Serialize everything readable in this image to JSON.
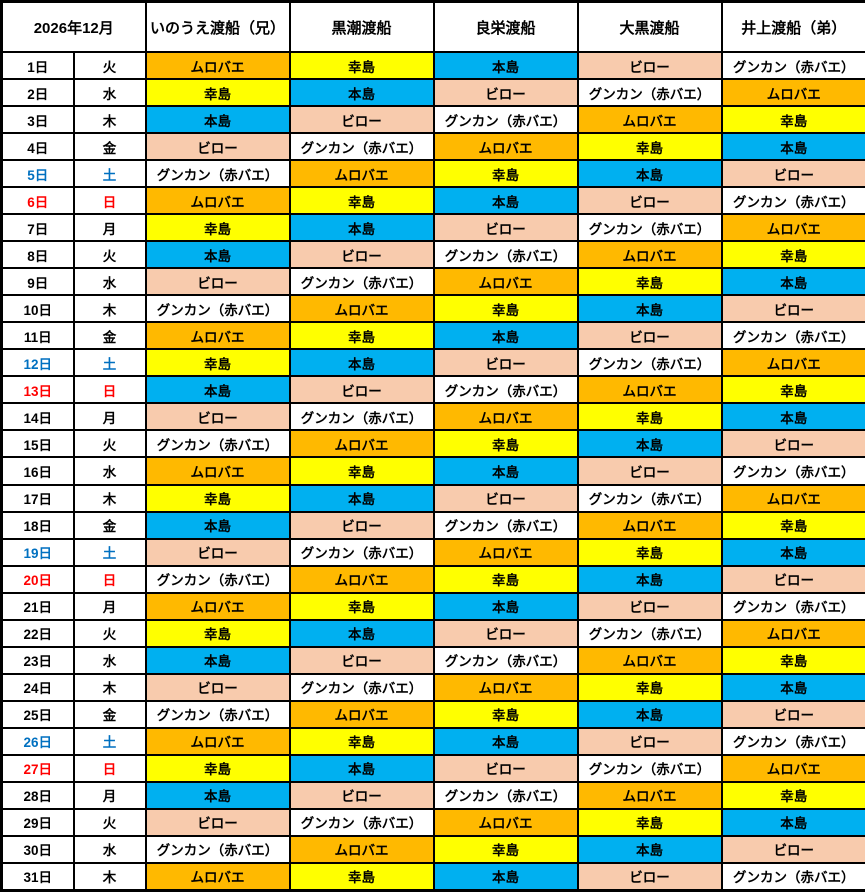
{
  "header": {
    "month_title": "2026年12月",
    "companies": [
      "いのうえ渡船（兄）",
      "黒潮渡船",
      "良栄渡船",
      "大黒渡船",
      "井上渡船（弟）"
    ]
  },
  "palette": {
    "ムロバエ": "#FFB900",
    "幸島": "#FFFF00",
    "本島": "#00B0F0",
    "ビロー": "#F8CBAD",
    "グンカン（赤バエ）": "#FFFFFF"
  },
  "weekday_colors": {
    "weekday": "#000000",
    "saturday": "#0070C0",
    "sunday": "#FF0000"
  },
  "border_color": "#000000",
  "rows": [
    {
      "day": "1日",
      "weekday": "火",
      "type": "weekday",
      "cells": [
        "ムロバエ",
        "幸島",
        "本島",
        "ビロー",
        "グンカン（赤バエ）"
      ]
    },
    {
      "day": "2日",
      "weekday": "水",
      "type": "weekday",
      "cells": [
        "幸島",
        "本島",
        "ビロー",
        "グンカン（赤バエ）",
        "ムロバエ"
      ]
    },
    {
      "day": "3日",
      "weekday": "木",
      "type": "weekday",
      "cells": [
        "本島",
        "ビロー",
        "グンカン（赤バエ）",
        "ムロバエ",
        "幸島"
      ]
    },
    {
      "day": "4日",
      "weekday": "金",
      "type": "weekday",
      "cells": [
        "ビロー",
        "グンカン（赤バエ）",
        "ムロバエ",
        "幸島",
        "本島"
      ]
    },
    {
      "day": "5日",
      "weekday": "土",
      "type": "saturday",
      "cells": [
        "グンカン（赤バエ）",
        "ムロバエ",
        "幸島",
        "本島",
        "ビロー"
      ]
    },
    {
      "day": "6日",
      "weekday": "日",
      "type": "sunday",
      "cells": [
        "ムロバエ",
        "幸島",
        "本島",
        "ビロー",
        "グンカン（赤バエ）"
      ]
    },
    {
      "day": "7日",
      "weekday": "月",
      "type": "weekday",
      "cells": [
        "幸島",
        "本島",
        "ビロー",
        "グンカン（赤バエ）",
        "ムロバエ"
      ]
    },
    {
      "day": "8日",
      "weekday": "火",
      "type": "weekday",
      "cells": [
        "本島",
        "ビロー",
        "グンカン（赤バエ）",
        "ムロバエ",
        "幸島"
      ]
    },
    {
      "day": "9日",
      "weekday": "水",
      "type": "weekday",
      "cells": [
        "ビロー",
        "グンカン（赤バエ）",
        "ムロバエ",
        "幸島",
        "本島"
      ]
    },
    {
      "day": "10日",
      "weekday": "木",
      "type": "weekday",
      "cells": [
        "グンカン（赤バエ）",
        "ムロバエ",
        "幸島",
        "本島",
        "ビロー"
      ]
    },
    {
      "day": "11日",
      "weekday": "金",
      "type": "weekday",
      "cells": [
        "ムロバエ",
        "幸島",
        "本島",
        "ビロー",
        "グンカン（赤バエ）"
      ]
    },
    {
      "day": "12日",
      "weekday": "土",
      "type": "saturday",
      "cells": [
        "幸島",
        "本島",
        "ビロー",
        "グンカン（赤バエ）",
        "ムロバエ"
      ]
    },
    {
      "day": "13日",
      "weekday": "日",
      "type": "sunday",
      "cells": [
        "本島",
        "ビロー",
        "グンカン（赤バエ）",
        "ムロバエ",
        "幸島"
      ]
    },
    {
      "day": "14日",
      "weekday": "月",
      "type": "weekday",
      "cells": [
        "ビロー",
        "グンカン（赤バエ）",
        "ムロバエ",
        "幸島",
        "本島"
      ]
    },
    {
      "day": "15日",
      "weekday": "火",
      "type": "weekday",
      "cells": [
        "グンカン（赤バエ）",
        "ムロバエ",
        "幸島",
        "本島",
        "ビロー"
      ]
    },
    {
      "day": "16日",
      "weekday": "水",
      "type": "weekday",
      "cells": [
        "ムロバエ",
        "幸島",
        "本島",
        "ビロー",
        "グンカン（赤バエ）"
      ]
    },
    {
      "day": "17日",
      "weekday": "木",
      "type": "weekday",
      "cells": [
        "幸島",
        "本島",
        "ビロー",
        "グンカン（赤バエ）",
        "ムロバエ"
      ]
    },
    {
      "day": "18日",
      "weekday": "金",
      "type": "weekday",
      "cells": [
        "本島",
        "ビロー",
        "グンカン（赤バエ）",
        "ムロバエ",
        "幸島"
      ]
    },
    {
      "day": "19日",
      "weekday": "土",
      "type": "saturday",
      "cells": [
        "ビロー",
        "グンカン（赤バエ）",
        "ムロバエ",
        "幸島",
        "本島"
      ]
    },
    {
      "day": "20日",
      "weekday": "日",
      "type": "sunday",
      "cells": [
        "グンカン（赤バエ）",
        "ムロバエ",
        "幸島",
        "本島",
        "ビロー"
      ]
    },
    {
      "day": "21日",
      "weekday": "月",
      "type": "weekday",
      "cells": [
        "ムロバエ",
        "幸島",
        "本島",
        "ビロー",
        "グンカン（赤バエ）"
      ]
    },
    {
      "day": "22日",
      "weekday": "火",
      "type": "weekday",
      "cells": [
        "幸島",
        "本島",
        "ビロー",
        "グンカン（赤バエ）",
        "ムロバエ"
      ]
    },
    {
      "day": "23日",
      "weekday": "水",
      "type": "weekday",
      "cells": [
        "本島",
        "ビロー",
        "グンカン（赤バエ）",
        "ムロバエ",
        "幸島"
      ]
    },
    {
      "day": "24日",
      "weekday": "木",
      "type": "weekday",
      "cells": [
        "ビロー",
        "グンカン（赤バエ）",
        "ムロバエ",
        "幸島",
        "本島"
      ]
    },
    {
      "day": "25日",
      "weekday": "金",
      "type": "weekday",
      "cells": [
        "グンカン（赤バエ）",
        "ムロバエ",
        "幸島",
        "本島",
        "ビロー"
      ]
    },
    {
      "day": "26日",
      "weekday": "土",
      "type": "saturday",
      "cells": [
        "ムロバエ",
        "幸島",
        "本島",
        "ビロー",
        "グンカン（赤バエ）"
      ]
    },
    {
      "day": "27日",
      "weekday": "日",
      "type": "sunday",
      "cells": [
        "幸島",
        "本島",
        "ビロー",
        "グンカン（赤バエ）",
        "ムロバエ"
      ]
    },
    {
      "day": "28日",
      "weekday": "月",
      "type": "weekday",
      "cells": [
        "本島",
        "ビロー",
        "グンカン（赤バエ）",
        "ムロバエ",
        "幸島"
      ]
    },
    {
      "day": "29日",
      "weekday": "火",
      "type": "weekday",
      "cells": [
        "ビロー",
        "グンカン（赤バエ）",
        "ムロバエ",
        "幸島",
        "本島"
      ]
    },
    {
      "day": "30日",
      "weekday": "水",
      "type": "weekday",
      "cells": [
        "グンカン（赤バエ）",
        "ムロバエ",
        "幸島",
        "本島",
        "ビロー"
      ]
    },
    {
      "day": "31日",
      "weekday": "木",
      "type": "weekday",
      "cells": [
        "ムロバエ",
        "幸島",
        "本島",
        "ビロー",
        "グンカン（赤バエ）"
      ]
    }
  ]
}
